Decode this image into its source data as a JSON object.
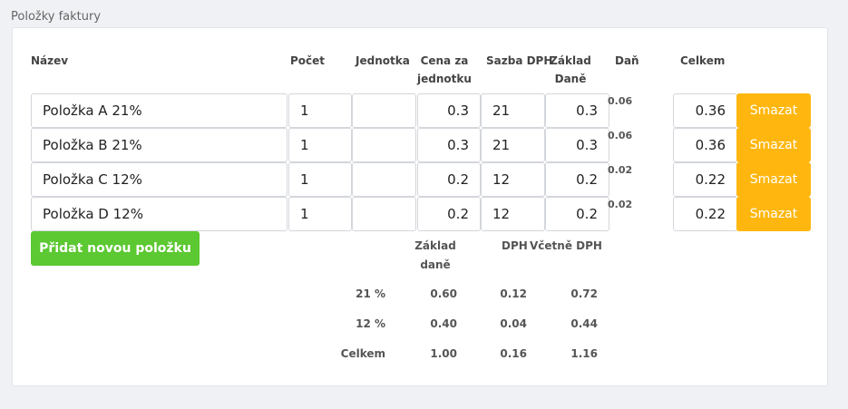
{
  "section_label": "Položky faktury",
  "columns": {
    "name": "Název",
    "count": "Počet",
    "unit": "Jednotka",
    "unit_price": "Cena za jednotku",
    "vat_rate": "Sazba DPH",
    "base": "Základ Daně",
    "tax": "Daň",
    "total": "Celkem"
  },
  "items": [
    {
      "name": "Položka A 21%",
      "count": "1",
      "unit": "",
      "unit_price": "0.3",
      "vat_rate": "21",
      "base": "0.3",
      "tax": "0.06",
      "total": "0.36",
      "delete_label": "Smazat"
    },
    {
      "name": "Položka B 21%",
      "count": "1",
      "unit": "",
      "unit_price": "0.3",
      "vat_rate": "21",
      "base": "0.3",
      "tax": "0.06",
      "total": "0.36",
      "delete_label": "Smazat"
    },
    {
      "name": "Položka C 12%",
      "count": "1",
      "unit": "",
      "unit_price": "0.2",
      "vat_rate": "12",
      "base": "0.2",
      "tax": "0.02",
      "total": "0.22",
      "delete_label": "Smazat"
    },
    {
      "name": "Položka D 12%",
      "count": "1",
      "unit": "",
      "unit_price": "0.2",
      "vat_rate": "12",
      "base": "0.2",
      "tax": "0.02",
      "total": "0.22",
      "delete_label": "Smazat"
    }
  ],
  "add_button_label": "Přidat novou položku",
  "summary": {
    "headers": {
      "base": "Základ daně",
      "vat": "DPH",
      "incl_vat": "Včetně DPH"
    },
    "rows": [
      {
        "label": "21 %",
        "base": "0.60",
        "vat": "0.12",
        "incl_vat": "0.72"
      },
      {
        "label": "12 %",
        "base": "0.40",
        "vat": "0.04",
        "incl_vat": "0.44"
      },
      {
        "label": "Celkem",
        "base": "1.00",
        "vat": "0.16",
        "incl_vat": "1.16"
      }
    ]
  }
}
